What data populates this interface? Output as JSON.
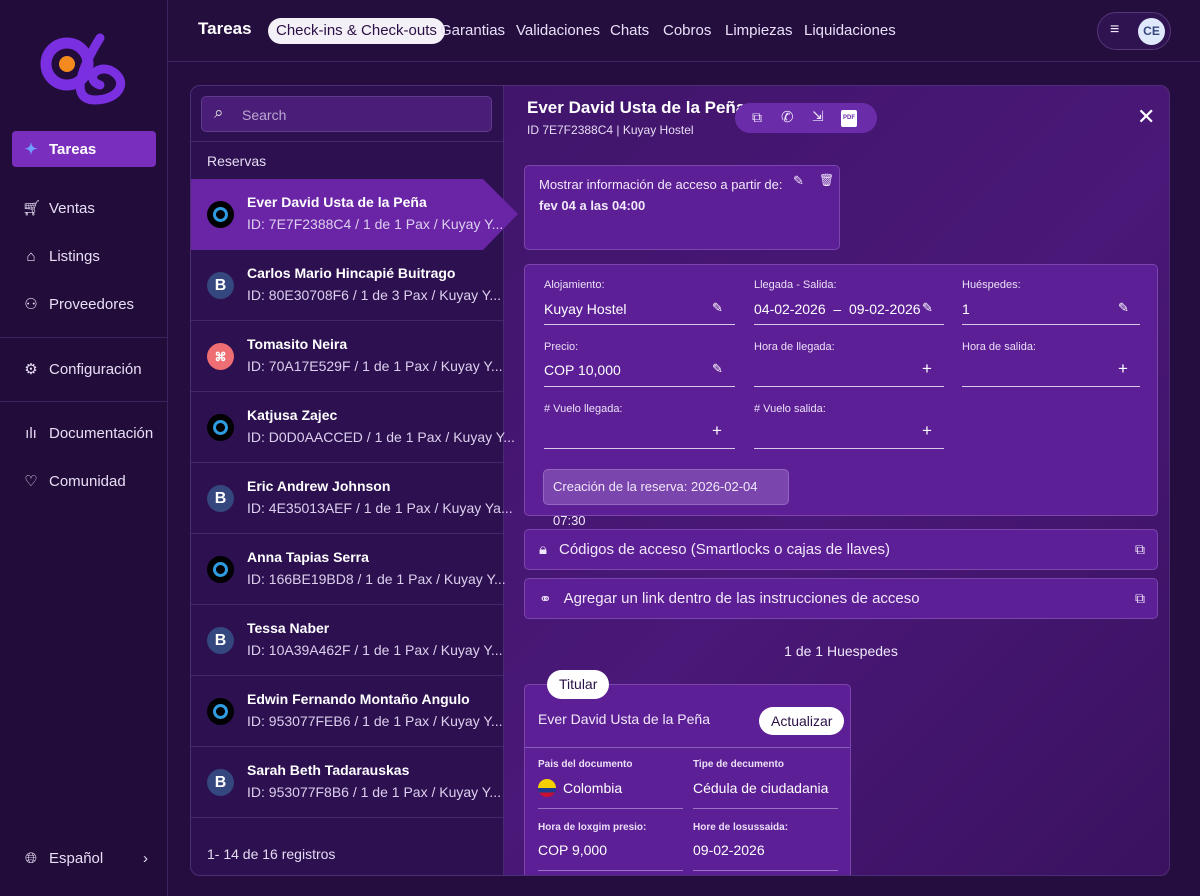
{
  "sidebar": {
    "items": [
      {
        "label": "Tareas",
        "icon": "sparkles-icon",
        "active": true
      },
      {
        "label": "Ventas",
        "icon": "cart-icon"
      },
      {
        "label": "Listings",
        "icon": "home-icon"
      },
      {
        "label": "Proveedores",
        "icon": "user-add-icon"
      },
      {
        "label": "Configuración",
        "icon": "gear-icon"
      },
      {
        "label": "Documentación",
        "icon": "bar-chart-icon"
      },
      {
        "label": "Comunidad",
        "icon": "heart-icon"
      }
    ],
    "language": "Español"
  },
  "topbar": {
    "title": "Tareas",
    "tabs": [
      "Check-ins & Check-outs",
      "Garantias",
      "Validaciones",
      "Chats",
      "Cobros",
      "Limpiezas",
      "Liquidaciones"
    ],
    "active_tab": 0,
    "avatar": "CE"
  },
  "list": {
    "search_placeholder": "Search",
    "heading": "Reservas",
    "footer": "1- 14 de 16 registros",
    "rows": [
      {
        "name": "Ever David Usta de la Peña",
        "sub": "ID: 7E7F2388C4 / 1 de 1 Pax / Kuyay Y...",
        "source": "o"
      },
      {
        "name": "Carlos Mario Hincapié Buitrago",
        "sub": "ID: 80E30708F6 / 1 de 3 Pax / Kuyay Y...",
        "source": "b"
      },
      {
        "name": "Tomasito Neira",
        "sub": "ID: 70A17E529F / 1 de 1 Pax / Kuyay Y...",
        "source": "a"
      },
      {
        "name": "Katjusa Zajec",
        "sub": "ID: D0D0AACCED / 1 de 1 Pax / Kuyay Y...",
        "source": "o"
      },
      {
        "name": "Eric Andrew Johnson",
        "sub": "ID: 4E35013AEF / 1 de 1 Pax / Kuyay Ya...",
        "source": "b"
      },
      {
        "name": "Anna Tapias Serra",
        "sub": "ID: 166BE19BD8 / 1 de 1 Pax / Kuyay Y...",
        "source": "o"
      },
      {
        "name": "Tessa Naber",
        "sub": "ID: 10A39A462F / 1 de 1 Pax / Kuyay Y...",
        "source": "b"
      },
      {
        "name": "Edwin Fernando Montaño Angulo",
        "sub": "ID: 953077FEB6 / 1 de 1 Pax / Kuyay Y...",
        "source": "o"
      },
      {
        "name": "Sarah Beth Tadarauskas",
        "sub": "ID: 953077F8B6 / 1 de 1 Pax / Kuyay Y...",
        "source": "b"
      }
    ]
  },
  "detail": {
    "title": "Ever David Usta de la Peña",
    "subtitle": "ID 7E7F2388C4 | Kuyay Hostel",
    "pdf": "PDF",
    "access": {
      "label": "Mostrar información de acceso a partir de:",
      "value": "fev 04 a las 04:00"
    },
    "form": {
      "alojamiento_label": "Alojamiento:",
      "alojamiento": "Kuyay Hostel",
      "fechas_label": "Llegada - Salida:",
      "llegada": "04-02-2026",
      "sep": "–",
      "salida": "09-02-2026",
      "huespedes_label": "Huéspedes:",
      "huespedes": "1",
      "precio_label": "Precio:",
      "precio": "COP 10,000",
      "hora_llegada_label": "Hora de llegada:",
      "hora_salida_label": "Hora de salida:",
      "vuelo_llegada_label": "# Vuelo llegada:",
      "vuelo_salida_label": "# Vuelo salida:",
      "creacion": "Creación de la reserva: 2026-02-04 07:30"
    },
    "codigos": "Códigos de acceso (Smartlocks o cajas de llaves)",
    "link": "Agregar un link dentro de las instrucciones de acceso",
    "guest_count": "1 de 1 Huespedes",
    "guest": {
      "badge": "Titular",
      "name": "Ever David Usta de la Peña",
      "update": "Actualizar",
      "pais_label": "Pais del documento",
      "pais": "Colombia",
      "tipo_label": "Tipe de decumento",
      "tipo": "Cédula de ciudadania",
      "f3_label": "Hora de loxgim presio:",
      "f3": "COP 9,000",
      "f4_label": "Hore de losussaida:",
      "f4": "09-02-2026"
    }
  }
}
